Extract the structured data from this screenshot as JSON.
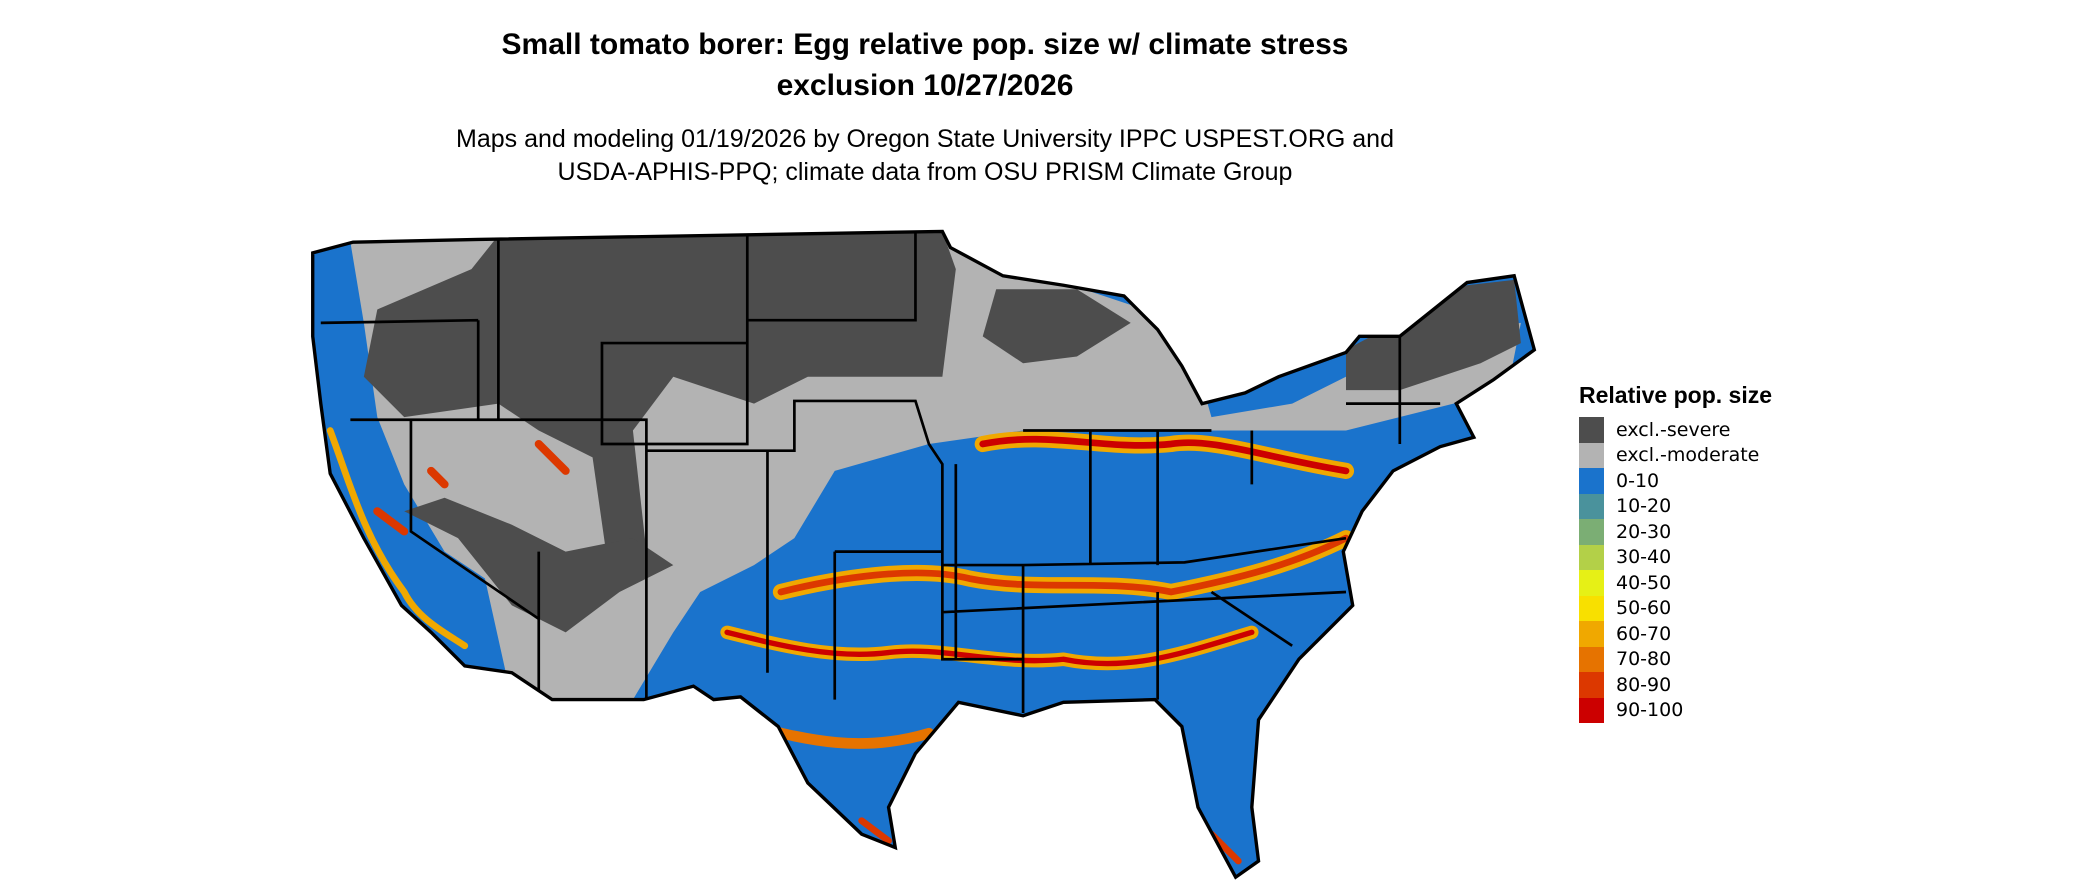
{
  "header": {
    "title_line1": "Small tomato borer: Egg relative pop. size w/ climate stress",
    "title_line2": "exclusion 10/27/2026",
    "subtitle_line1": "Maps and modeling 01/19/2026 by Oregon State University IPPC USPEST.ORG and",
    "subtitle_line2": "USDA-APHIS-PPQ; climate data from OSU PRISM Climate Group"
  },
  "legend": {
    "title": "Relative pop. size",
    "items": [
      {
        "label": "excl.-severe",
        "color": "#4d4d4d"
      },
      {
        "label": "excl.-moderate",
        "color": "#b3b3b3"
      },
      {
        "label": "0-10",
        "color": "#1a73cc"
      },
      {
        "label": "10-20",
        "color": "#4a929c"
      },
      {
        "label": "20-30",
        "color": "#7bae74"
      },
      {
        "label": "30-40",
        "color": "#b3d048"
      },
      {
        "label": "40-50",
        "color": "#e6f016"
      },
      {
        "label": "50-60",
        "color": "#f8e000"
      },
      {
        "label": "60-70",
        "color": "#f0a800"
      },
      {
        "label": "70-80",
        "color": "#e67300"
      },
      {
        "label": "80-90",
        "color": "#dc3800"
      },
      {
        "label": "90-100",
        "color": "#cc0000"
      }
    ]
  }
}
